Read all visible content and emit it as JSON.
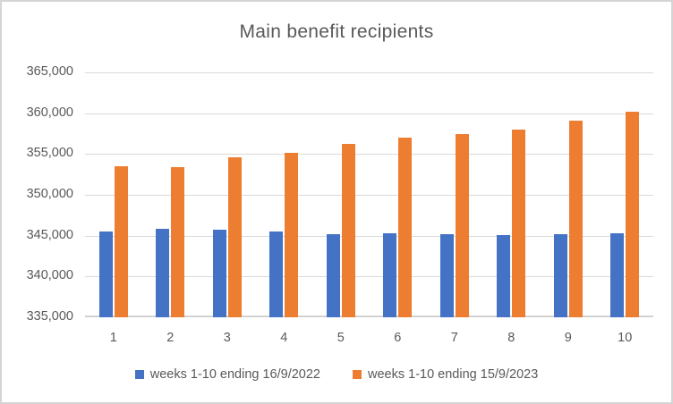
{
  "window": {
    "background_color": "#ffffff",
    "border_color": "#d5d5d5",
    "text_color": "#595959",
    "gridline_color": "#d9d9d9"
  },
  "chart_data": {
    "type": "bar",
    "title": "Main benefit recipients",
    "xlabel": "",
    "ylabel": "",
    "categories": [
      "1",
      "2",
      "3",
      "4",
      "5",
      "6",
      "7",
      "8",
      "9",
      "10"
    ],
    "series": [
      {
        "name": "weeks 1-10 ending 16/9/2022",
        "color": "#4472C4",
        "values": [
          345500,
          345800,
          345700,
          345500,
          345200,
          345300,
          345200,
          345100,
          345200,
          345300
        ]
      },
      {
        "name": "weeks 1-10 ending 15/9/2023",
        "color": "#ED7D31",
        "values": [
          353500,
          353400,
          354600,
          355100,
          356200,
          357000,
          357400,
          358000,
          359100,
          360200
        ]
      }
    ],
    "y_axis": {
      "min": 335000,
      "max": 365000,
      "step": 5000,
      "ticks": [
        {
          "value": 365000,
          "label": "365,000"
        },
        {
          "value": 360000,
          "label": "360,000"
        },
        {
          "value": 355000,
          "label": "355,000"
        },
        {
          "value": 350000,
          "label": "350,000"
        },
        {
          "value": 345000,
          "label": "345,000"
        },
        {
          "value": 340000,
          "label": "340,000"
        },
        {
          "value": 335000,
          "label": "335,000"
        }
      ]
    },
    "grid": true,
    "legend_position": "bottom"
  }
}
